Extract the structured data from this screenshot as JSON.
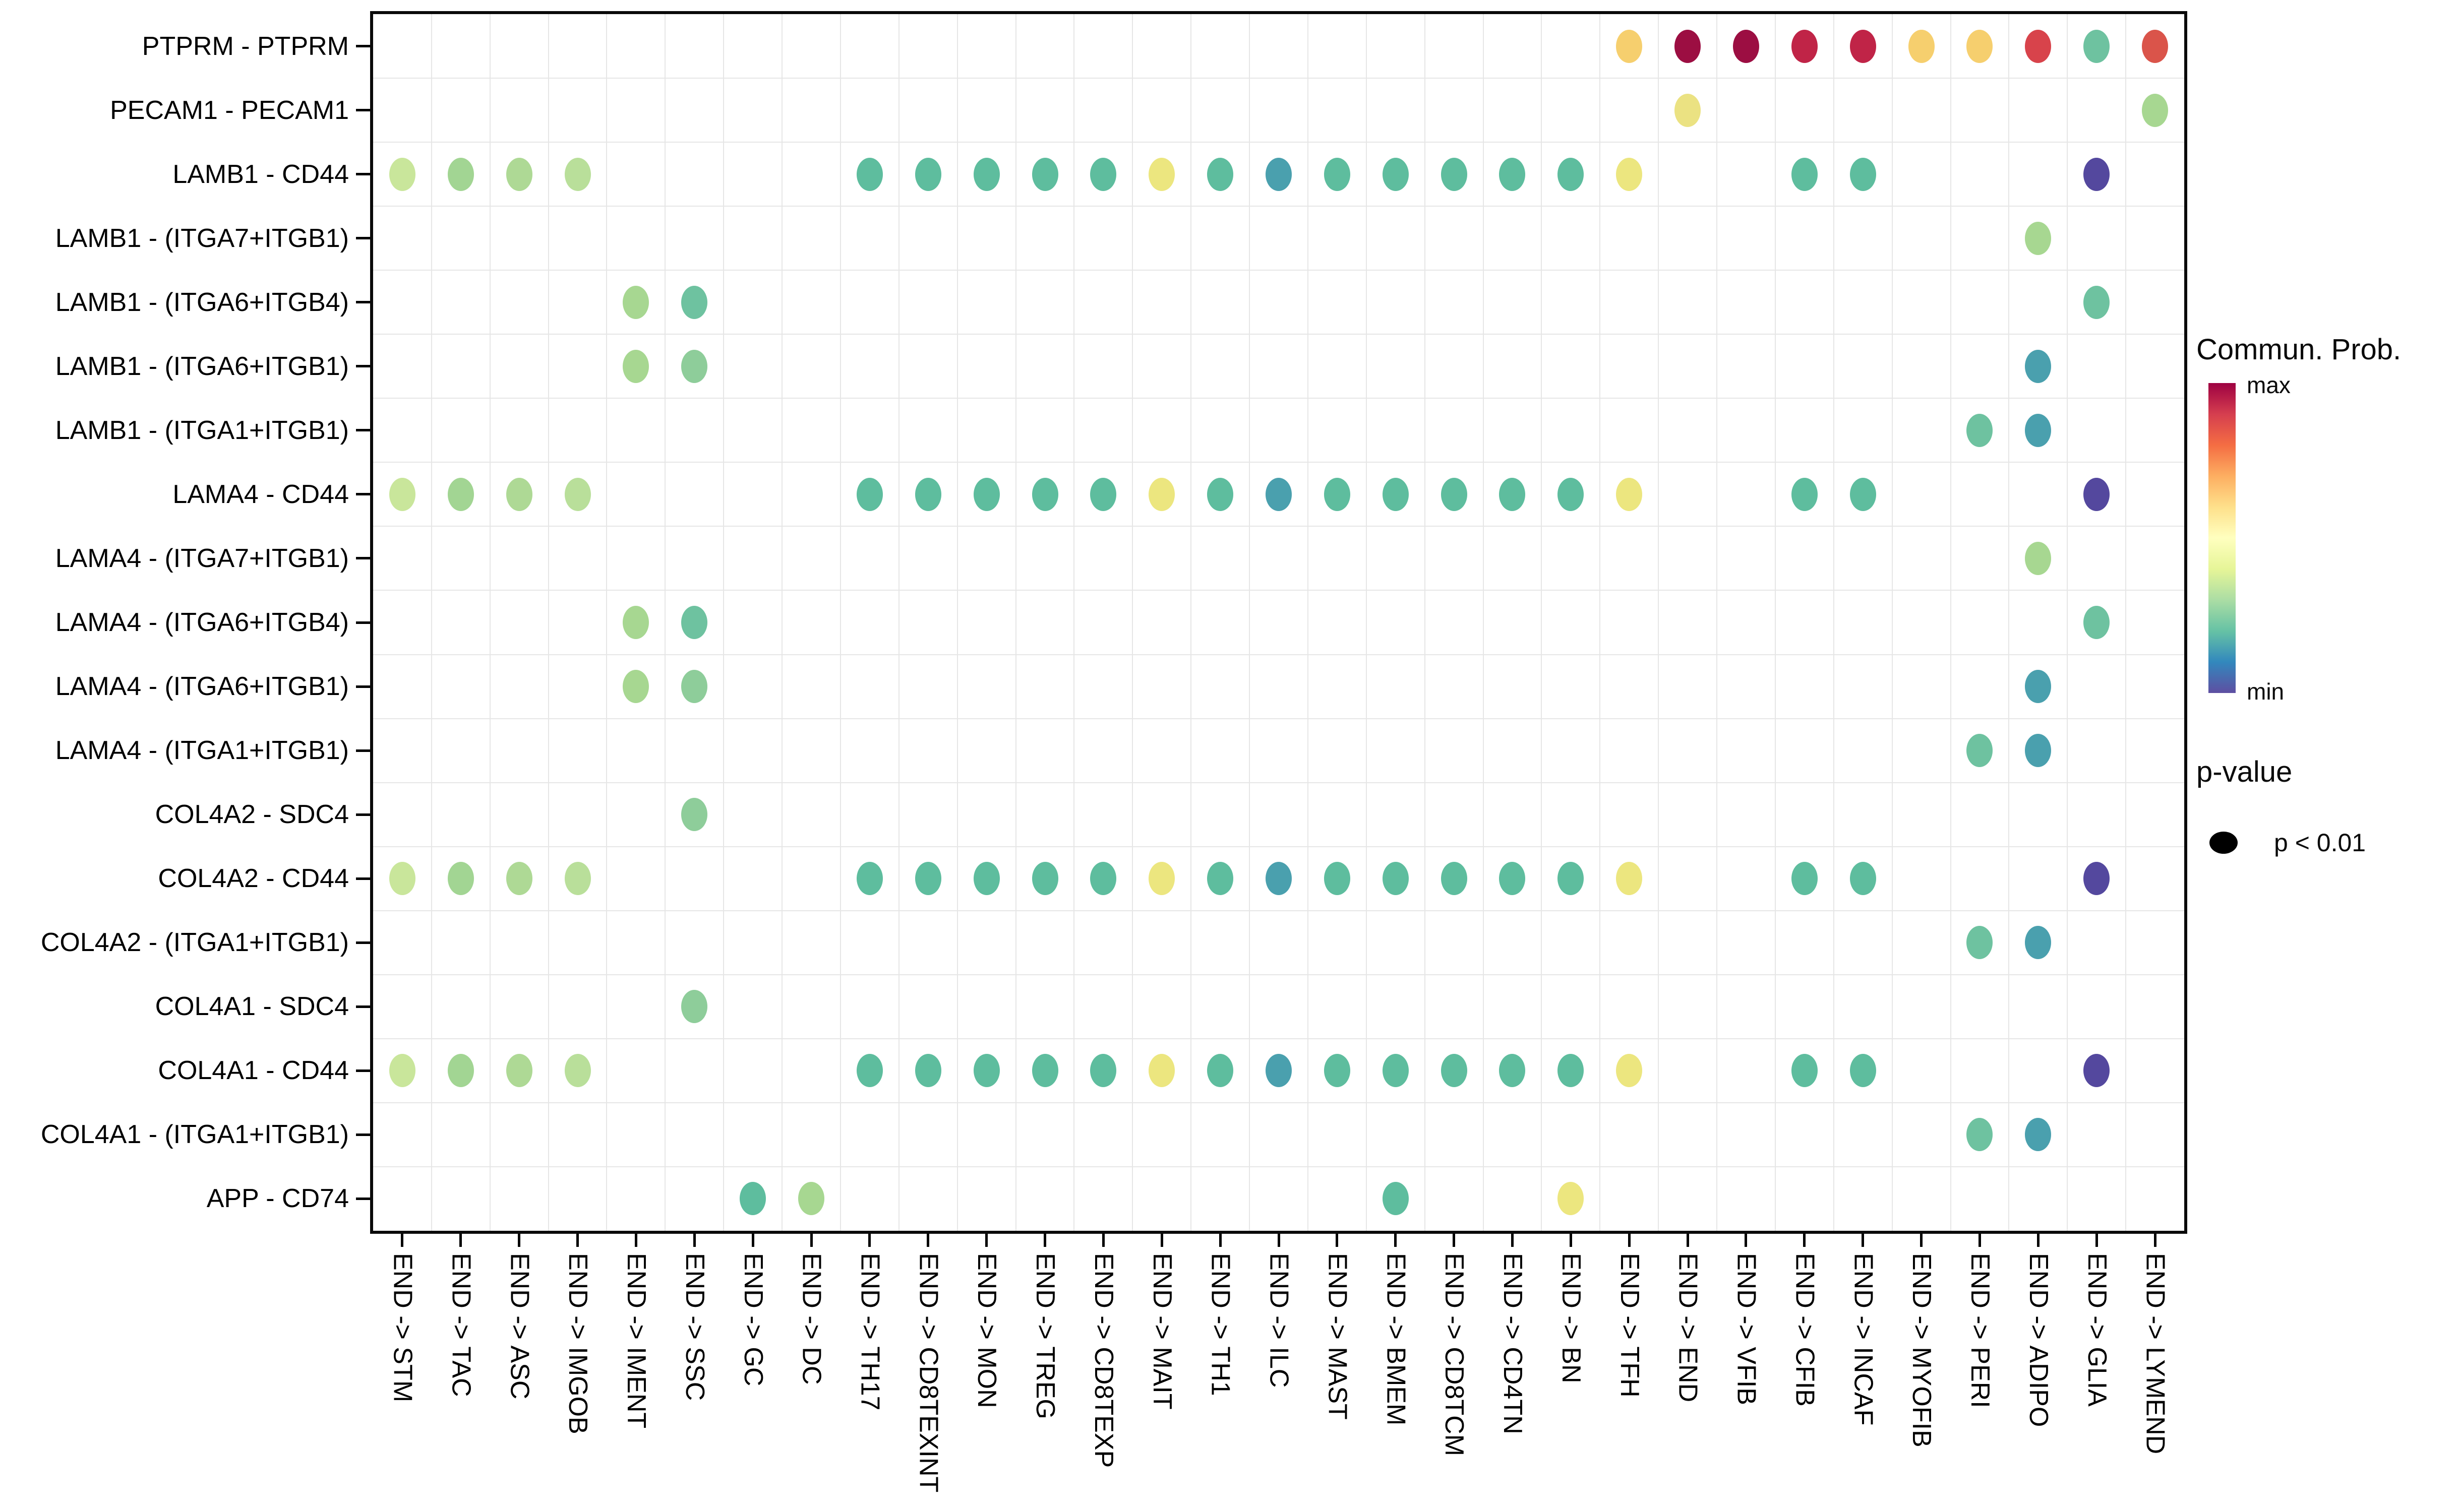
{
  "chart_data": {
    "type": "scatter",
    "subtype": "bubble-dotplot",
    "title": "",
    "xlabel": "",
    "ylabel": "",
    "grid": "on",
    "legend_position": "right",
    "x_categories": [
      "END -> STM",
      "END -> TAC",
      "END -> ASC",
      "END -> IMGOB",
      "END -> IMENT",
      "END -> SSC",
      "END -> GC",
      "END -> DC",
      "END -> TH17",
      "END -> CD8TEXINT",
      "END -> MON",
      "END -> TREG",
      "END -> CD8TEXP",
      "END -> MAIT",
      "END -> TH1",
      "END -> ILC",
      "END -> MAST",
      "END -> BMEM",
      "END -> CD8TCM",
      "END -> CD4TN",
      "END -> BN",
      "END -> TFH",
      "END -> END",
      "END -> VFIB",
      "END -> CFIB",
      "END -> INCAF",
      "END -> MYOFIB",
      "END -> PERI",
      "END -> ADIPO",
      "END -> GLIA",
      "END -> LYMEND"
    ],
    "y_categories": [
      "PTPRM - PTPRM",
      "PECAM1 - PECAM1",
      "LAMB1 - CD44",
      "LAMB1 - (ITGA7+ITGB1)",
      "LAMB1 - (ITGA6+ITGB4)",
      "LAMB1 - (ITGA6+ITGB1)",
      "LAMB1 - (ITGA1+ITGB1)",
      "LAMA4 - CD44",
      "LAMA4 - (ITGA7+ITGB1)",
      "LAMA4 - (ITGA6+ITGB4)",
      "LAMA4 - (ITGA6+ITGB1)",
      "LAMA4 - (ITGA1+ITGB1)",
      "COL4A2 - SDC4",
      "COL4A2 - CD44",
      "COL4A2 - (ITGA1+ITGB1)",
      "COL4A1 - SDC4",
      "COL4A1 - CD44",
      "COL4A1 - (ITGA1+ITGB1)",
      "APP - CD74"
    ],
    "legend": {
      "colorbar_title": "Commun. Prob.",
      "max_label": "max",
      "min_label": "min",
      "pvalue_title": "p-value",
      "pvalue_item_label": "p < 0.01",
      "gradient_top_to_bottom": [
        "#9e0142",
        "#d53e4f",
        "#f46d43",
        "#fdae61",
        "#fee08b",
        "#ffffbf",
        "#e6f598",
        "#abdda4",
        "#66c2a5",
        "#3288bd",
        "#5e4fa2"
      ]
    },
    "palette": {
      "stm": "#c9e69b",
      "tac": "#a2d593",
      "asc": "#aed995",
      "imgob": "#b9df9a",
      "teal": "#5ebd9e",
      "yellow": "#ece67f",
      "blueteal": "#4aa0ae",
      "purple": "#54489e",
      "tealgreen": "#6ec2a0",
      "medgreen": "#8ecd9a",
      "lightgreen": "#a7d791",
      "amber": "#f6cf6e",
      "gold": "#ebe282",
      "darkred": "#9c0e42",
      "crimson": "#c02447",
      "red": "#d8434b",
      "redorange": "#da544a"
    },
    "points": [
      [
        0,
        21,
        "amber"
      ],
      [
        0,
        22,
        "darkred"
      ],
      [
        0,
        23,
        "darkred"
      ],
      [
        0,
        24,
        "crimson"
      ],
      [
        0,
        25,
        "crimson"
      ],
      [
        0,
        26,
        "amber"
      ],
      [
        0,
        27,
        "amber"
      ],
      [
        0,
        28,
        "red"
      ],
      [
        0,
        29,
        "tealgreen"
      ],
      [
        0,
        30,
        "redorange"
      ],
      [
        1,
        22,
        "gold"
      ],
      [
        1,
        30,
        "lightgreen"
      ],
      [
        2,
        0,
        "stm"
      ],
      [
        2,
        1,
        "tac"
      ],
      [
        2,
        2,
        "asc"
      ],
      [
        2,
        3,
        "imgob"
      ],
      [
        2,
        8,
        "teal"
      ],
      [
        2,
        9,
        "teal"
      ],
      [
        2,
        10,
        "teal"
      ],
      [
        2,
        11,
        "teal"
      ],
      [
        2,
        12,
        "teal"
      ],
      [
        2,
        13,
        "yellow"
      ],
      [
        2,
        14,
        "teal"
      ],
      [
        2,
        15,
        "blueteal"
      ],
      [
        2,
        16,
        "teal"
      ],
      [
        2,
        17,
        "teal"
      ],
      [
        2,
        18,
        "teal"
      ],
      [
        2,
        19,
        "teal"
      ],
      [
        2,
        20,
        "teal"
      ],
      [
        2,
        21,
        "yellow"
      ],
      [
        2,
        24,
        "teal"
      ],
      [
        2,
        25,
        "teal"
      ],
      [
        2,
        29,
        "purple"
      ],
      [
        3,
        28,
        "lightgreen"
      ],
      [
        4,
        4,
        "lightgreen"
      ],
      [
        4,
        5,
        "tealgreen"
      ],
      [
        4,
        29,
        "tealgreen"
      ],
      [
        5,
        4,
        "lightgreen"
      ],
      [
        5,
        5,
        "medgreen"
      ],
      [
        5,
        28,
        "blueteal"
      ],
      [
        6,
        27,
        "tealgreen"
      ],
      [
        6,
        28,
        "blueteal"
      ],
      [
        7,
        0,
        "stm"
      ],
      [
        7,
        1,
        "tac"
      ],
      [
        7,
        2,
        "asc"
      ],
      [
        7,
        3,
        "imgob"
      ],
      [
        7,
        8,
        "teal"
      ],
      [
        7,
        9,
        "teal"
      ],
      [
        7,
        10,
        "teal"
      ],
      [
        7,
        11,
        "teal"
      ],
      [
        7,
        12,
        "teal"
      ],
      [
        7,
        13,
        "yellow"
      ],
      [
        7,
        14,
        "teal"
      ],
      [
        7,
        15,
        "blueteal"
      ],
      [
        7,
        16,
        "teal"
      ],
      [
        7,
        17,
        "teal"
      ],
      [
        7,
        18,
        "teal"
      ],
      [
        7,
        19,
        "teal"
      ],
      [
        7,
        20,
        "teal"
      ],
      [
        7,
        21,
        "yellow"
      ],
      [
        7,
        24,
        "teal"
      ],
      [
        7,
        25,
        "teal"
      ],
      [
        7,
        29,
        "purple"
      ],
      [
        8,
        28,
        "lightgreen"
      ],
      [
        9,
        4,
        "lightgreen"
      ],
      [
        9,
        5,
        "tealgreen"
      ],
      [
        9,
        29,
        "tealgreen"
      ],
      [
        10,
        4,
        "lightgreen"
      ],
      [
        10,
        5,
        "medgreen"
      ],
      [
        10,
        28,
        "blueteal"
      ],
      [
        11,
        27,
        "tealgreen"
      ],
      [
        11,
        28,
        "blueteal"
      ],
      [
        12,
        5,
        "medgreen"
      ],
      [
        13,
        0,
        "stm"
      ],
      [
        13,
        1,
        "tac"
      ],
      [
        13,
        2,
        "asc"
      ],
      [
        13,
        3,
        "imgob"
      ],
      [
        13,
        8,
        "teal"
      ],
      [
        13,
        9,
        "teal"
      ],
      [
        13,
        10,
        "teal"
      ],
      [
        13,
        11,
        "teal"
      ],
      [
        13,
        12,
        "teal"
      ],
      [
        13,
        13,
        "yellow"
      ],
      [
        13,
        14,
        "teal"
      ],
      [
        13,
        15,
        "blueteal"
      ],
      [
        13,
        16,
        "teal"
      ],
      [
        13,
        17,
        "teal"
      ],
      [
        13,
        18,
        "teal"
      ],
      [
        13,
        19,
        "teal"
      ],
      [
        13,
        20,
        "teal"
      ],
      [
        13,
        21,
        "yellow"
      ],
      [
        13,
        24,
        "teal"
      ],
      [
        13,
        25,
        "teal"
      ],
      [
        13,
        29,
        "purple"
      ],
      [
        14,
        27,
        "tealgreen"
      ],
      [
        14,
        28,
        "blueteal"
      ],
      [
        15,
        5,
        "medgreen"
      ],
      [
        16,
        0,
        "stm"
      ],
      [
        16,
        1,
        "tac"
      ],
      [
        16,
        2,
        "asc"
      ],
      [
        16,
        3,
        "imgob"
      ],
      [
        16,
        8,
        "teal"
      ],
      [
        16,
        9,
        "teal"
      ],
      [
        16,
        10,
        "teal"
      ],
      [
        16,
        11,
        "teal"
      ],
      [
        16,
        12,
        "teal"
      ],
      [
        16,
        13,
        "yellow"
      ],
      [
        16,
        14,
        "teal"
      ],
      [
        16,
        15,
        "blueteal"
      ],
      [
        16,
        16,
        "teal"
      ],
      [
        16,
        17,
        "teal"
      ],
      [
        16,
        18,
        "teal"
      ],
      [
        16,
        19,
        "teal"
      ],
      [
        16,
        20,
        "teal"
      ],
      [
        16,
        21,
        "yellow"
      ],
      [
        16,
        24,
        "teal"
      ],
      [
        16,
        25,
        "teal"
      ],
      [
        16,
        29,
        "purple"
      ],
      [
        17,
        27,
        "tealgreen"
      ],
      [
        17,
        28,
        "blueteal"
      ],
      [
        18,
        6,
        "teal"
      ],
      [
        18,
        7,
        "lightgreen"
      ],
      [
        18,
        17,
        "teal"
      ],
      [
        18,
        20,
        "yellow"
      ]
    ]
  }
}
